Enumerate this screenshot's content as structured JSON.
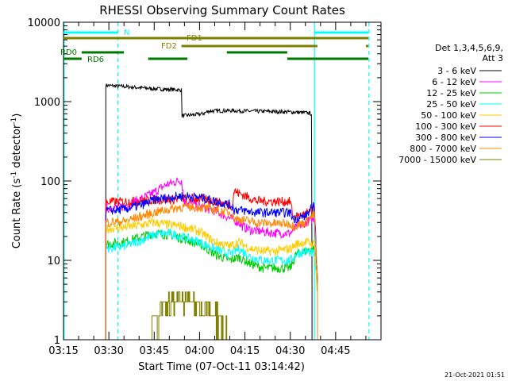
{
  "chart_data": {
    "type": "line",
    "title": "RHESSI Observing Summary Count Rates",
    "xlabel": "Start Time (07-Oct-11 03:14:42)",
    "ylabel_pre": "Count Rate (s",
    "ylabel_sup1": "-1",
    "ylabel_mid": " detector",
    "ylabel_sup2": "-1",
    "ylabel_post": ")",
    "y_scale": "log",
    "ylim": [
      1,
      10000
    ],
    "xlim_minutes": [
      0,
      105
    ],
    "x_ticks": [
      {
        "label": "03:15",
        "min": 0
      },
      {
        "label": "03:30",
        "min": 15
      },
      {
        "label": "03:45",
        "min": 30
      },
      {
        "label": "04:00",
        "min": 45
      },
      {
        "label": "04:15",
        "min": 60
      },
      {
        "label": "04:30",
        "min": 75
      },
      {
        "label": "04:45",
        "min": 90
      }
    ],
    "y_ticks": [
      {
        "label": "1",
        "v": 1
      },
      {
        "label": "10",
        "v": 10
      },
      {
        "label": "100",
        "v": 100
      },
      {
        "label": "1000",
        "v": 1000
      },
      {
        "label": "10000",
        "v": 10000
      }
    ],
    "legend_header": [
      "Det 1,3,4,5,6,9,",
      "Att 3"
    ],
    "series": [
      {
        "name": "3 - 6 keV",
        "color": "#000000",
        "points": [
          [
            14,
            1600
          ],
          [
            20,
            1550
          ],
          [
            30,
            1450
          ],
          [
            39,
            1400
          ],
          [
            39.2,
            660
          ],
          [
            46,
            700
          ],
          [
            48,
            760
          ],
          [
            55,
            770
          ],
          [
            60,
            760
          ],
          [
            70,
            750
          ],
          [
            75,
            740
          ],
          [
            81,
            720
          ],
          [
            82,
            700
          ],
          [
            82.2,
            5
          ]
        ]
      },
      {
        "name": "6 - 12 keV",
        "color": "#ff00ff",
        "points": [
          [
            14,
            45
          ],
          [
            20,
            48
          ],
          [
            26,
            60
          ],
          [
            30,
            72
          ],
          [
            34,
            90
          ],
          [
            39,
            103
          ],
          [
            40,
            55
          ],
          [
            45,
            48
          ],
          [
            50,
            42
          ],
          [
            55,
            34
          ],
          [
            58,
            30
          ],
          [
            59,
            27
          ],
          [
            62,
            24
          ],
          [
            66,
            23
          ],
          [
            70,
            22
          ],
          [
            75,
            22
          ],
          [
            77,
            26
          ],
          [
            80,
            30
          ],
          [
            83,
            34
          ],
          [
            84,
            5
          ]
        ]
      },
      {
        "name": "12 - 25 keV",
        "color": "#00cc00",
        "points": [
          [
            14,
            16
          ],
          [
            20,
            17
          ],
          [
            26,
            20
          ],
          [
            30,
            22
          ],
          [
            35,
            21
          ],
          [
            39,
            19
          ],
          [
            45,
            16
          ],
          [
            50,
            12
          ],
          [
            55,
            10
          ],
          [
            58,
            11
          ],
          [
            62,
            9
          ],
          [
            66,
            8
          ],
          [
            70,
            8
          ],
          [
            75,
            8
          ],
          [
            77,
            12
          ],
          [
            80,
            13
          ],
          [
            83,
            14
          ],
          [
            84,
            4
          ]
        ]
      },
      {
        "name": "25 - 50 keV",
        "color": "#00ffff",
        "points": [
          [
            14,
            14
          ],
          [
            20,
            15
          ],
          [
            26,
            18
          ],
          [
            30,
            21
          ],
          [
            35,
            22
          ],
          [
            39,
            20
          ],
          [
            45,
            17
          ],
          [
            50,
            14
          ],
          [
            55,
            12
          ],
          [
            58,
            14
          ],
          [
            62,
            11
          ],
          [
            66,
            10
          ],
          [
            70,
            10
          ],
          [
            75,
            10
          ],
          [
            77,
            12
          ],
          [
            80,
            13
          ],
          [
            83,
            12
          ],
          [
            84,
            4
          ]
        ]
      },
      {
        "name": "50 - 100 keV",
        "color": "#ffcc00",
        "points": [
          [
            14,
            25
          ],
          [
            20,
            26
          ],
          [
            26,
            28
          ],
          [
            30,
            30
          ],
          [
            35,
            28
          ],
          [
            39,
            27
          ],
          [
            45,
            23
          ],
          [
            50,
            17
          ],
          [
            55,
            15
          ],
          [
            58,
            17
          ],
          [
            62,
            14
          ],
          [
            66,
            13
          ],
          [
            70,
            13
          ],
          [
            75,
            14
          ],
          [
            77,
            16
          ],
          [
            80,
            17
          ],
          [
            83,
            16
          ],
          [
            84,
            4
          ]
        ]
      },
      {
        "name": "100 - 300 keV",
        "color": "#ff0000",
        "points": [
          [
            14,
            54
          ],
          [
            20,
            55
          ],
          [
            26,
            56
          ],
          [
            30,
            58
          ],
          [
            35,
            58
          ],
          [
            39,
            60
          ],
          [
            45,
            60
          ],
          [
            50,
            55
          ],
          [
            55,
            50
          ],
          [
            56,
            48
          ],
          [
            56.3,
            75
          ],
          [
            60,
            65
          ],
          [
            64,
            56
          ],
          [
            70,
            55
          ],
          [
            75,
            55
          ],
          [
            76,
            35
          ],
          [
            80,
            38
          ],
          [
            83,
            45
          ],
          [
            84,
            5
          ]
        ]
      },
      {
        "name": "300 - 800 keV",
        "color": "#0000ff",
        "points": [
          [
            14,
            42
          ],
          [
            20,
            44
          ],
          [
            26,
            50
          ],
          [
            30,
            58
          ],
          [
            35,
            62
          ],
          [
            39,
            65
          ],
          [
            45,
            62
          ],
          [
            50,
            56
          ],
          [
            55,
            50
          ],
          [
            56,
            48
          ],
          [
            56.3,
            44
          ],
          [
            60,
            42
          ],
          [
            64,
            40
          ],
          [
            70,
            40
          ],
          [
            75,
            40
          ],
          [
            76,
            33
          ],
          [
            80,
            36
          ],
          [
            83,
            50
          ],
          [
            84,
            5
          ]
        ]
      },
      {
        "name": "800 - 7000 keV",
        "color": "#ff8800",
        "points": [
          [
            14,
            30
          ],
          [
            20,
            31
          ],
          [
            26,
            36
          ],
          [
            30,
            40
          ],
          [
            35,
            44
          ],
          [
            39,
            47
          ],
          [
            45,
            47
          ],
          [
            50,
            43
          ],
          [
            55,
            40
          ],
          [
            56,
            38
          ],
          [
            56.3,
            34
          ],
          [
            60,
            32
          ],
          [
            64,
            30
          ],
          [
            70,
            29
          ],
          [
            75,
            29
          ],
          [
            76,
            27
          ],
          [
            80,
            30
          ],
          [
            83,
            38
          ],
          [
            84,
            5
          ]
        ]
      },
      {
        "name": "7000 - 15000 keV",
        "color": "#808000",
        "points": [
          [
            29,
            1.5
          ],
          [
            31,
            2
          ],
          [
            33,
            2.5
          ],
          [
            35,
            3
          ],
          [
            40,
            3
          ],
          [
            45,
            2.7
          ],
          [
            47,
            2.5
          ],
          [
            50,
            2
          ],
          [
            52,
            1.5
          ],
          [
            54,
            1.2
          ]
        ]
      }
    ],
    "state_bars": [
      {
        "label": "N",
        "color": "#00ffff",
        "level": "top",
        "segments": [
          [
            0,
            18
          ],
          [
            83,
            101
          ]
        ]
      },
      {
        "label": "FD1",
        "color": "#808000",
        "level": "upper",
        "segments": [
          [
            0,
            101
          ]
        ]
      },
      {
        "label": "FD2",
        "color": "#808000",
        "level": "middle",
        "segments": [
          [
            39,
            84
          ],
          [
            100,
            102
          ]
        ]
      },
      {
        "label": "RD0",
        "color": "#007700",
        "level": "lower",
        "segments": [
          [
            6,
            20
          ],
          [
            54,
            74
          ]
        ]
      },
      {
        "label": "RD6",
        "color": "#007700",
        "level": "bottom",
        "segments": [
          [
            0,
            6
          ],
          [
            28,
            41
          ],
          [
            74,
            101
          ]
        ]
      }
    ],
    "vertical_lines": [
      {
        "color": "#00ffff",
        "style": "solid",
        "min": 0.2
      },
      {
        "color": "#00ffff",
        "style": "dashed",
        "min": 18
      },
      {
        "color": "#00ffff",
        "style": "solid",
        "min": 83
      },
      {
        "color": "#00ffff",
        "style": "dashed",
        "min": 101
      }
    ],
    "footer": "21-Oct-2021 01:51"
  }
}
